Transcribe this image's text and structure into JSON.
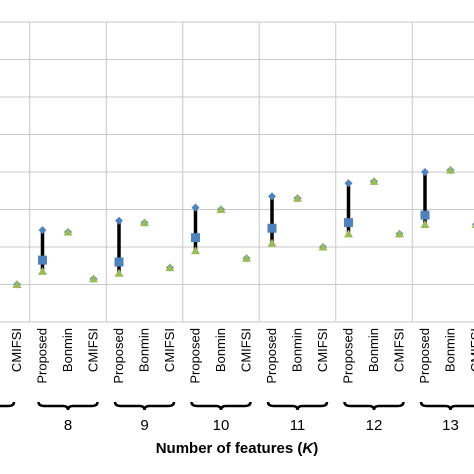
{
  "chart_data": {
    "type": "scatter",
    "xlabel": "Number of features",
    "xlabel_var": "K",
    "xlabel_open": "(",
    "xlabel_close": ")",
    "groups": [
      "8",
      "9",
      "10",
      "11",
      "12",
      "13"
    ],
    "methods": [
      "Proposed",
      "Bonmin",
      "CMIFSI"
    ],
    "visible_slots": [
      "CMIFSI",
      "Proposed",
      "Bonmin",
      "CMIFSI",
      "Proposed",
      "Bonmin",
      "CMIFSI",
      "Proposed",
      "Bonmin",
      "CMIFSI",
      "Proposed",
      "Bonmin",
      "CMIFSI",
      "Proposed",
      "Bonmin",
      "CMIFSI",
      "Proposed",
      "Bonmin",
      "CMIFSI"
    ],
    "ylim": [
      0,
      8
    ],
    "grid": true,
    "legend": "none",
    "series": [
      {
        "marker": "diamond",
        "color": "#4f81bd",
        "values": [
          1.0,
          2.45,
          2.4,
          1.15,
          2.7,
          2.65,
          1.45,
          3.05,
          3.0,
          1.7,
          3.35,
          3.3,
          2.0,
          3.7,
          3.75,
          2.35,
          4.0,
          4.05,
          2.6
        ]
      },
      {
        "marker": "square",
        "color": "#4f81bd",
        "values": [
          null,
          1.65,
          null,
          null,
          1.6,
          null,
          null,
          2.25,
          null,
          null,
          2.5,
          null,
          null,
          2.65,
          null,
          null,
          2.85,
          null,
          null
        ]
      },
      {
        "marker": "triangle",
        "color": "#9bbb59",
        "values": [
          1.0,
          1.35,
          2.4,
          1.15,
          1.3,
          2.65,
          1.45,
          1.9,
          3.0,
          1.7,
          2.1,
          3.3,
          2.0,
          2.35,
          3.75,
          2.35,
          2.6,
          4.05,
          2.6
        ]
      },
      {
        "marker": "range-bar",
        "color": "#000000",
        "low": [
          null,
          1.35,
          null,
          null,
          1.3,
          null,
          null,
          1.9,
          null,
          null,
          2.1,
          null,
          null,
          2.35,
          null,
          null,
          2.6,
          null,
          null
        ],
        "high": [
          null,
          2.45,
          null,
          null,
          2.7,
          null,
          null,
          3.05,
          null,
          null,
          3.35,
          null,
          null,
          3.7,
          null,
          null,
          4.0,
          null,
          null
        ]
      }
    ]
  }
}
